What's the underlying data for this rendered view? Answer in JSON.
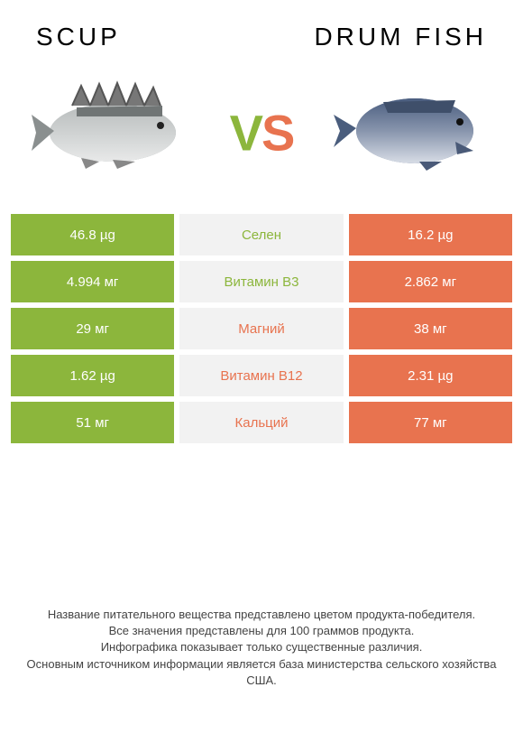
{
  "header": {
    "left_title": "SCUP",
    "right_title": "DRUM FISH"
  },
  "vs": {
    "v": "V",
    "s": "S"
  },
  "colors": {
    "left": "#8cb63c",
    "right": "#e8734f",
    "mid_bg": "#f2f2f2"
  },
  "rows": [
    {
      "left": "46.8 µg",
      "label": "Селен",
      "right": "16.2 µg",
      "winner": "left"
    },
    {
      "left": "4.994 мг",
      "label": "Витамин B3",
      "right": "2.862 мг",
      "winner": "left"
    },
    {
      "left": "29 мг",
      "label": "Магний",
      "right": "38 мг",
      "winner": "right"
    },
    {
      "left": "1.62 µg",
      "label": "Витамин B12",
      "right": "2.31 µg",
      "winner": "right"
    },
    {
      "left": "51 мг",
      "label": "Кальций",
      "right": "77 мг",
      "winner": "right"
    }
  ],
  "footer": {
    "line1": "Название питательного вещества представлено цветом продукта-победителя.",
    "line2": "Все значения представлены для 100 граммов продукта.",
    "line3": "Инфографика показывает только существенные различия.",
    "line4": "Основным источником информации является база министерства сельского хозяйства США."
  }
}
